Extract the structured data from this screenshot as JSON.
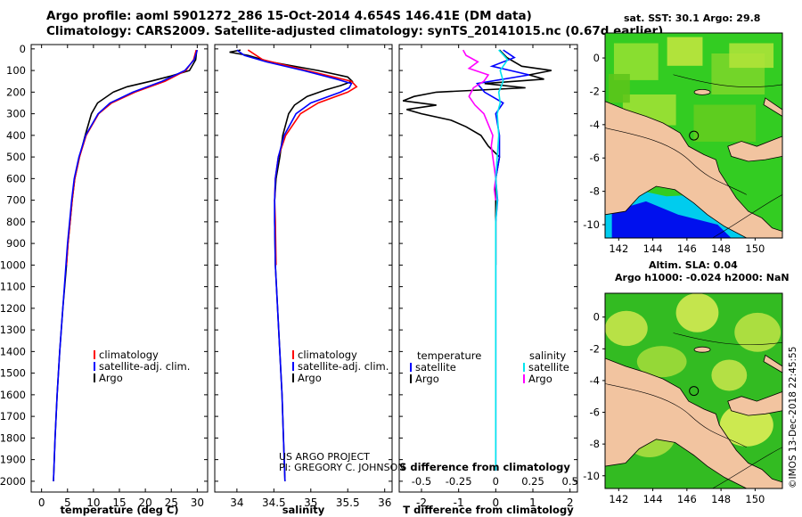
{
  "header": {
    "line1": "Argo profile: aoml 5901272_286 15-Oct-2014 4.654S 146.41E (DM data)",
    "line2": "Climatology: CARS2009. Satellite-adjusted climatology: synTS_20141015.nc (0.67d earlier)"
  },
  "colors": {
    "argo": "#000000",
    "climatology": "#ff0000",
    "satellite": "#0000ff",
    "salinity_satellite": "#00e5ee",
    "salinity_argo": "#ff00ff",
    "land": "#f2c4a0"
  },
  "chart_data": [
    {
      "type": "line",
      "title": "Temperature profile",
      "xlabel": "temperature (deg C)",
      "ylabel": "",
      "xlim": [
        -2,
        32
      ],
      "ylim": [
        2050,
        0
      ],
      "xticks": [
        "0",
        "5",
        "10",
        "15",
        "20",
        "25",
        "30"
      ],
      "yticks": [
        "0",
        "100",
        "200",
        "300",
        "400",
        "500",
        "600",
        "700",
        "800",
        "900",
        "1000",
        "1100",
        "1200",
        "1300",
        "1400",
        "1500",
        "1600",
        "1700",
        "1800",
        "1900",
        "2000"
      ],
      "legend": [
        {
          "label": "climatology",
          "color": "#ff0000"
        },
        {
          "label": "satellite-adj. clim.",
          "color": "#0000ff"
        },
        {
          "label": "Argo",
          "color": "#000000"
        }
      ],
      "series": [
        {
          "name": "Argo",
          "color": "#000000",
          "depth": [
            5,
            50,
            100,
            125,
            150,
            175,
            200,
            250,
            300,
            400,
            500,
            600,
            700,
            800,
            900,
            1000,
            1200,
            1400,
            1600,
            1800,
            2000
          ],
          "values": [
            29.9,
            29.7,
            28.5,
            25.0,
            21.0,
            16.5,
            13.8,
            10.8,
            9.6,
            8.4,
            7.3,
            6.4,
            5.9,
            5.5,
            5.1,
            4.8,
            4.1,
            3.5,
            3.0,
            2.6,
            2.3
          ]
        },
        {
          "name": "climatology",
          "color": "#ff0000",
          "depth": [
            5,
            50,
            100,
            150,
            200,
            250,
            300,
            400,
            500,
            600,
            700,
            800,
            900,
            1000
          ],
          "values": [
            29.8,
            29.3,
            27.8,
            23.8,
            18.0,
            13.5,
            11.0,
            8.6,
            7.3,
            6.4,
            5.9,
            5.5,
            5.1,
            4.8
          ]
        },
        {
          "name": "satellite-adj. clim.",
          "color": "#0000ff",
          "depth": [
            5,
            50,
            100,
            150,
            200,
            250,
            300,
            400,
            500,
            600,
            700,
            800,
            900,
            1000,
            1200,
            1400,
            1600,
            1800,
            2000
          ],
          "values": [
            30.0,
            29.4,
            27.6,
            23.2,
            17.6,
            13.2,
            10.9,
            8.5,
            7.2,
            6.3,
            5.8,
            5.4,
            5.0,
            4.7,
            4.1,
            3.5,
            3.0,
            2.6,
            2.3
          ]
        }
      ]
    },
    {
      "type": "line",
      "title": "Salinity profile",
      "xlabel": "salinity",
      "ylabel": "",
      "xlim": [
        33.7,
        36.1
      ],
      "ylim": [
        2050,
        0
      ],
      "xticks": [
        "34",
        "34.5",
        "35",
        "35.5",
        "36"
      ],
      "legend": [
        {
          "label": "climatology",
          "color": "#ff0000"
        },
        {
          "label": "satellite-adj. clim.",
          "color": "#0000ff"
        },
        {
          "label": "Argo",
          "color": "#000000"
        }
      ],
      "annotations": [
        "US ARGO PROJECT",
        "PI: GREGORY C. JOHNSON"
      ],
      "series": [
        {
          "name": "Argo",
          "color": "#000000",
          "depth": [
            5,
            15,
            30,
            60,
            100,
            130,
            150,
            170,
            190,
            220,
            260,
            300,
            350,
            400,
            500,
            600,
            700,
            800,
            1000,
            1200,
            1400,
            1600,
            1800,
            2000
          ],
          "values": [
            34.05,
            33.9,
            34.15,
            34.45,
            35.1,
            35.5,
            35.56,
            35.4,
            35.2,
            34.95,
            34.78,
            34.7,
            34.66,
            34.62,
            34.58,
            34.53,
            34.51,
            34.51,
            34.52,
            34.55,
            34.58,
            34.61,
            34.63,
            34.65
          ]
        },
        {
          "name": "climatology",
          "color": "#ff0000",
          "depth": [
            5,
            50,
            100,
            150,
            175,
            200,
            250,
            300,
            400,
            500,
            600,
            700,
            800,
            1000
          ],
          "values": [
            34.15,
            34.35,
            34.95,
            35.55,
            35.62,
            35.5,
            35.1,
            34.86,
            34.66,
            34.56,
            34.52,
            34.51,
            34.52,
            34.53
          ]
        },
        {
          "name": "satellite-adj. clim.",
          "color": "#0000ff",
          "depth": [
            5,
            30,
            60,
            100,
            140,
            160,
            180,
            200,
            250,
            300,
            400,
            500,
            600,
            700,
            800,
            1000,
            1200,
            1400,
            1600,
            1800,
            2000
          ],
          "values": [
            34.0,
            34.1,
            34.4,
            34.9,
            35.35,
            35.55,
            35.52,
            35.4,
            35.0,
            34.8,
            34.64,
            34.56,
            34.52,
            34.51,
            34.51,
            34.52,
            34.55,
            34.58,
            34.61,
            34.63,
            34.65
          ]
        }
      ]
    },
    {
      "type": "line",
      "title": "Difference from climatology",
      "xlabel": "T difference from climatology",
      "x2label": "S difference from climatology",
      "xlim": [
        -2.6,
        2.2
      ],
      "x2lim": [
        -0.65,
        0.55
      ],
      "ylim": [
        2050,
        0
      ],
      "xticks": [
        "-2",
        "-1",
        "0",
        "1",
        "2"
      ],
      "x2ticks": [
        "-0.5",
        "-0.25",
        "0",
        "0.25",
        "0.5"
      ],
      "legend_temperature_title": "temperature",
      "legend_salinity_title": "salinity",
      "legend": [
        {
          "label": "satellite",
          "color": "#0000ff",
          "group": "temperature"
        },
        {
          "label": "Argo",
          "color": "#000000",
          "group": "temperature"
        },
        {
          "label": "satellite",
          "color": "#00e5ee",
          "group": "salinity"
        },
        {
          "label": "Argo",
          "color": "#ff00ff",
          "group": "salinity"
        }
      ],
      "series": [
        {
          "name": "T Argo",
          "color": "#000000",
          "depth": [
            5,
            40,
            80,
            100,
            120,
            140,
            160,
            180,
            200,
            220,
            240,
            260,
            280,
            300,
            330,
            360,
            400,
            450,
            500,
            600,
            700,
            800,
            900,
            1000
          ],
          "values": [
            0.1,
            0.3,
            0.7,
            1.5,
            0.9,
            1.3,
            -0.3,
            0.8,
            -1.6,
            -2.2,
            -2.5,
            -1.6,
            -2.4,
            -2.0,
            -1.2,
            -0.8,
            -0.4,
            -0.2,
            0.1,
            0.0,
            0.0,
            0.0,
            0.0,
            0.0
          ]
        },
        {
          "name": "T satellite",
          "color": "#0000ff",
          "depth": [
            5,
            40,
            80,
            120,
            160,
            200,
            250,
            300,
            400,
            500,
            600,
            700,
            800,
            1000,
            1200,
            1400,
            1600,
            1800,
            1950
          ],
          "values": [
            0.2,
            0.5,
            -0.1,
            0.9,
            -0.5,
            -0.3,
            0.2,
            0.0,
            0.1,
            0.1,
            0.0,
            0.05,
            0.0,
            0.0,
            0.0,
            0.0,
            0.0,
            0.0,
            0.0
          ]
        },
        {
          "name": "S Argo",
          "color": "#ff00ff",
          "depth": [
            5,
            30,
            60,
            90,
            120,
            150,
            180,
            220,
            260,
            300,
            350,
            400,
            450,
            500,
            550,
            600,
            650,
            700
          ],
          "values": [
            -0.22,
            -0.2,
            -0.12,
            -0.18,
            -0.05,
            -0.08,
            -0.15,
            -0.18,
            -0.14,
            -0.08,
            -0.05,
            -0.02,
            -0.03,
            -0.02,
            -0.01,
            0.0,
            -0.01,
            0.0
          ]
        },
        {
          "name": "S satellite",
          "color": "#00e5ee",
          "depth": [
            5,
            50,
            100,
            150,
            200,
            250,
            300,
            400,
            500,
            600,
            700,
            800,
            900,
            1000,
            1200,
            1400,
            1600,
            1800,
            1950
          ],
          "values": [
            0.02,
            0.08,
            0.03,
            0.05,
            0.02,
            0.03,
            0.01,
            0.02,
            0.01,
            0.0,
            0.01,
            0.0,
            0.0,
            0.0,
            0.0,
            0.0,
            0.0,
            0.0,
            0.0
          ]
        }
      ]
    }
  ],
  "maps": {
    "sst_title": "sat. SST: 30.1 Argo: 29.8",
    "sla_title_1": "Altim. SLA: 0.04",
    "sla_title_2": "Argo h1000: -0.024 h2000: NaN",
    "lat_ticks": [
      "0",
      "-2",
      "-4",
      "-6",
      "-8",
      "-10"
    ],
    "lon_ticks": [
      "142",
      "144",
      "146",
      "148",
      "150"
    ],
    "lon_range": [
      141.2,
      151.6
    ],
    "lat_range": [
      -10.8,
      1.5
    ],
    "float_lon": 146.41,
    "float_lat": -4.654
  },
  "stamp": "©IMOS 13-Dec-2018 22:45:55"
}
